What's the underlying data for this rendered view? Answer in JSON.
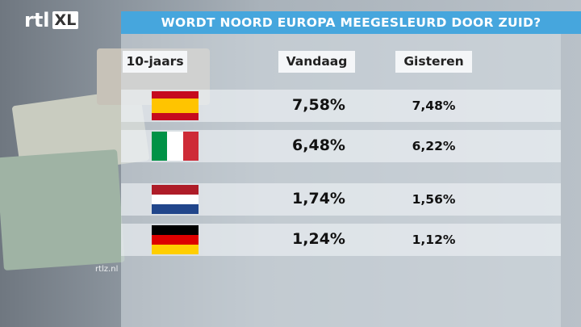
{
  "logo": {
    "brand": "rtl",
    "badge": "XL"
  },
  "header": {
    "title": "WORDT NOORD EUROPA MEEGESLEURD DOOR ZUID?"
  },
  "table": {
    "columns": [
      "10-jaars",
      "Vandaag",
      "Gisteren"
    ],
    "rows": [
      [
        "7,58%",
        "7,48%"
      ],
      [
        "6,48%",
        "6,22%"
      ],
      [
        "1,74%",
        "1,56%"
      ],
      [
        "1,24%",
        "1,12%"
      ]
    ]
  },
  "footer": {
    "watermark": "rtlz.nl"
  }
}
